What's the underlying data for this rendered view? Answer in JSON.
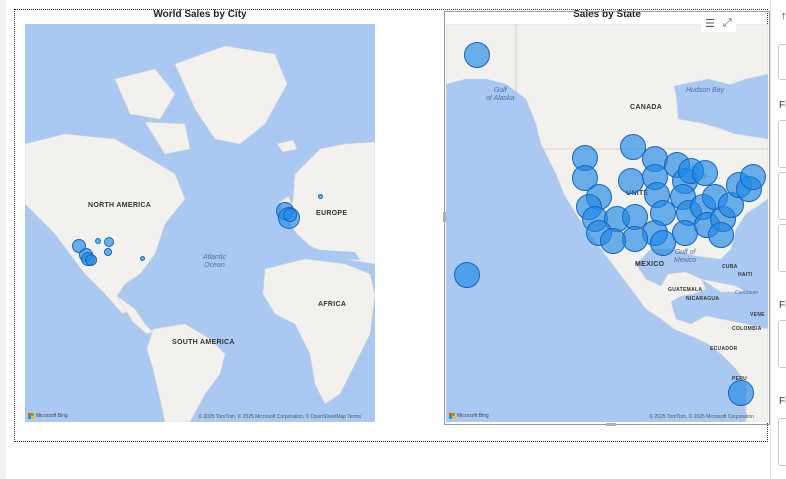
{
  "visuals": {
    "world": {
      "title": "World Sales by City",
      "labels": {
        "north_america": "NORTH AMERICA",
        "europe": "EUROPE",
        "africa": "AFRICA",
        "south_america": "SOUTH AMERICA",
        "atlantic": "Atlantic\nOcean"
      },
      "attribution": "© 2025 TomTom, © 2025 Microsoft Corporation, © OpenStreetMap  Terms",
      "bing": "Microsoft Bing"
    },
    "state": {
      "title": "Sales by State",
      "labels": {
        "canada": "CANADA",
        "gulf_alaska": "Gulf\nof Alaska",
        "hudson_bay": "Hudson Bay",
        "united": "UNITE",
        "gulf_mexico": "Gulf of\nMexico",
        "mexico": "MEXICO",
        "cuba": "CUBA",
        "haiti": "HAITI",
        "guatemala": "GUATEMALA",
        "nicaragua": "NICARAGUA",
        "caribbean": "Caribbean",
        "venezuela": "VENE",
        "colombia": "COLOMBIA",
        "ecuador": "ECUADOR",
        "peru": "PERU"
      },
      "attribution": "© 2025 TomTom, © 2025 Microsoft Corporation",
      "bing": "Microsoft Bing"
    }
  },
  "header_icons": {
    "filter": "filter-icon",
    "focus": "focus-mode-icon"
  },
  "filters_pane": {
    "top_icon": "↑",
    "section_label": "Fi",
    "section_label_2": "Fi",
    "section_label_3": "Fi"
  },
  "colors": {
    "bubble": "#1e88e5",
    "water": "#a9c9f2",
    "land": "#f2f1ee"
  }
}
